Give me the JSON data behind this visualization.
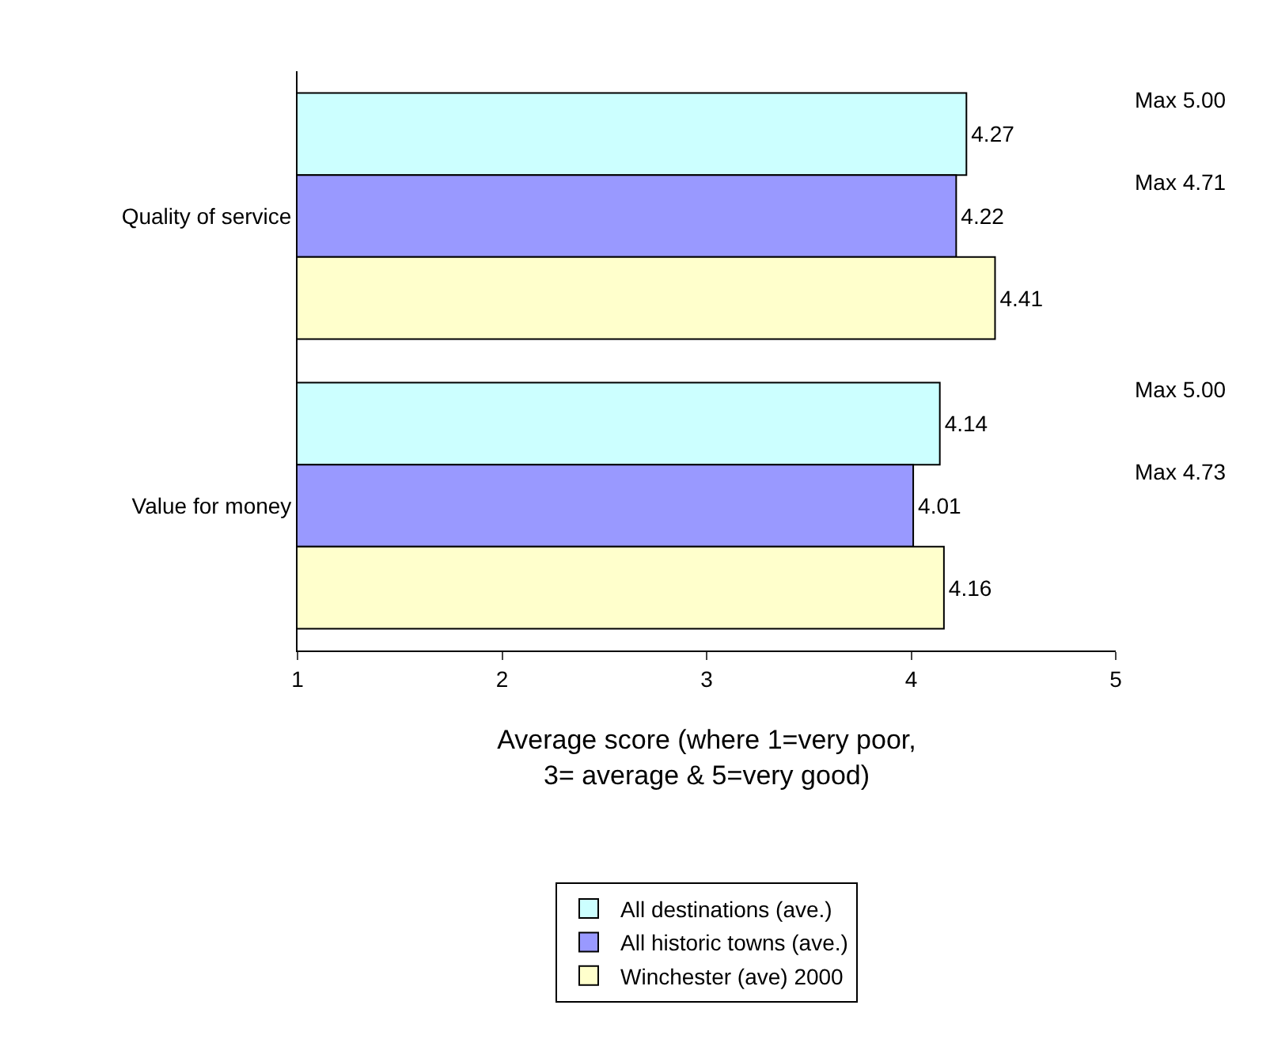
{
  "chart_data": {
    "type": "bar",
    "orientation": "horizontal",
    "categories": [
      "Quality of service",
      "Value for money"
    ],
    "series": [
      {
        "name": "All destinations (ave.)",
        "color": "#ccffff",
        "values": [
          4.27,
          4.14
        ],
        "value_labels": [
          "4.27",
          "4.14"
        ]
      },
      {
        "name": "All historic towns (ave.)",
        "color": "#9999ff",
        "values": [
          4.22,
          4.01
        ],
        "value_labels": [
          "4.22",
          "4.01"
        ]
      },
      {
        "name": "Winchester (ave) 2000",
        "color": "#ffffcc",
        "values": [
          4.41,
          4.16
        ],
        "value_labels": [
          "4.41",
          "4.16"
        ]
      }
    ],
    "xlim": [
      1,
      5
    ],
    "xticks": [
      1,
      2,
      3,
      4,
      5
    ],
    "xlabel": "Average score (where 1=very poor,\n3= average & 5=very good)",
    "annotations": [
      "Max 5.00",
      "Max 4.71",
      "Max 5.00",
      "Max 4.73"
    ],
    "legend": "bottom"
  }
}
